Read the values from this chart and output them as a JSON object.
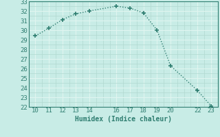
{
  "x": [
    10,
    11,
    12,
    13,
    14,
    16,
    17,
    18,
    19,
    20,
    22,
    23
  ],
  "y": [
    29.4,
    30.2,
    31.1,
    31.7,
    32.0,
    32.5,
    32.3,
    31.8,
    30.0,
    26.3,
    23.7,
    22.1
  ],
  "xlabel": "Humidex (Indice chaleur)",
  "xlim": [
    9.5,
    23.5
  ],
  "ylim": [
    22,
    33
  ],
  "yticks": [
    22,
    23,
    24,
    25,
    26,
    27,
    28,
    29,
    30,
    31,
    32,
    33
  ],
  "xticks": [
    10,
    11,
    12,
    13,
    14,
    16,
    17,
    18,
    19,
    20,
    22,
    23
  ],
  "line_color": "#2e7d70",
  "bg_color": "#c8ece6",
  "grid_major_color": "#b0d8d0",
  "grid_white_color": "#e0f5f0",
  "xlabel_fontsize": 7,
  "tick_fontsize": 6.5
}
